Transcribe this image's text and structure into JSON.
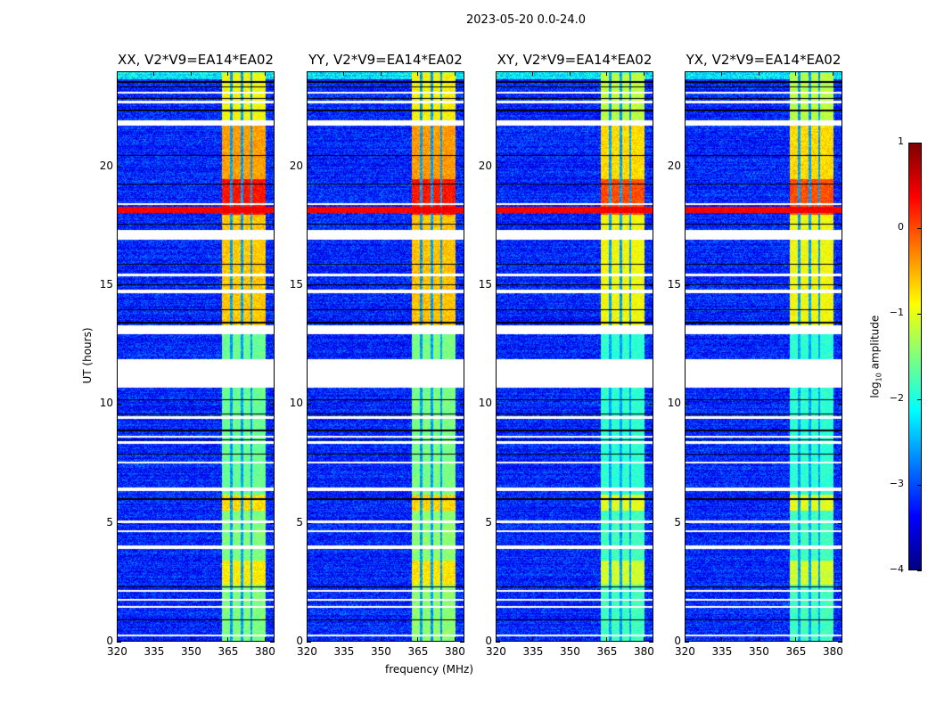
{
  "suptitle": "2023-05-20 0.0-24.0",
  "chart_data": {
    "type": "heatmap",
    "xlabel": "frequency (MHz)",
    "ylabel": "UT (hours)",
    "xlim": [
      320,
      384
    ],
    "ylim": [
      0,
      24
    ],
    "xticks": [
      320,
      335,
      350,
      365,
      380
    ],
    "xtick_labels": [
      "320",
      "335",
      "350",
      "365",
      "380"
    ],
    "yticks": [
      0,
      5,
      10,
      15,
      20
    ],
    "ytick_labels": [
      "0",
      "5",
      "10",
      "15",
      "20"
    ],
    "panels": [
      {
        "title": "XX, V2*V9=EA14*EA02",
        "band_gain": 1.0
      },
      {
        "title": "YY, V2*V9=EA14*EA02",
        "band_gain": 1.1
      },
      {
        "title": "XY, V2*V9=EA14*EA02",
        "band_gain": 0.9
      },
      {
        "title": "YX, V2*V9=EA14*EA02",
        "band_gain": 0.85
      }
    ],
    "colorbar": {
      "label": "log10 amplitude",
      "label_main": "log",
      "label_sub": "10",
      "label_rest": " amplitude",
      "colormap": "jet",
      "range": [
        -4,
        1
      ],
      "ticks": [
        1,
        0,
        -1,
        -2,
        -3,
        -4
      ],
      "tick_labels": [
        "1",
        "0",
        "−1",
        "−2",
        "−3",
        "−4"
      ]
    },
    "structure": {
      "background_log_amp": -3.2,
      "bright_band_mhz": [
        362.5,
        380.5
      ],
      "band_notches_mhz": [
        366.5,
        370.8,
        374.6
      ],
      "band_levels": [
        {
          "from": 0,
          "to": 2.4,
          "level": -1.5
        },
        {
          "from": 2.4,
          "to": 3.4,
          "level": -0.8
        },
        {
          "from": 3.4,
          "to": 5.5,
          "level": -1.5
        },
        {
          "from": 5.5,
          "to": 6.2,
          "level": -0.7
        },
        {
          "from": 6.2,
          "to": 13.3,
          "level": -1.6
        },
        {
          "from": 13.3,
          "to": 18.0,
          "level": -0.6
        },
        {
          "from": 18.0,
          "to": 19.5,
          "level": 0.3
        },
        {
          "from": 19.5,
          "to": 22.0,
          "level": -0.4
        },
        {
          "from": 22.0,
          "to": 24.0,
          "level": -0.9
        }
      ],
      "rfi_line_hours": 18.2,
      "gaps_hours": [
        [
          0.2,
          0.28
        ],
        [
          1.4,
          1.48
        ],
        [
          1.7,
          1.78
        ],
        [
          2.1,
          2.18
        ],
        [
          3.9,
          4.05
        ],
        [
          4.6,
          4.68
        ],
        [
          5.0,
          5.08
        ],
        [
          6.35,
          6.5
        ],
        [
          7.5,
          7.58
        ],
        [
          8.35,
          8.43
        ],
        [
          8.6,
          8.68
        ],
        [
          9.4,
          9.48
        ],
        [
          10.7,
          11.9
        ],
        [
          12.95,
          13.35
        ],
        [
          14.7,
          14.85
        ],
        [
          15.4,
          15.5
        ],
        [
          16.95,
          17.35
        ],
        [
          18.4,
          18.48
        ],
        [
          21.75,
          22.0
        ],
        [
          22.7,
          22.8
        ],
        [
          23.1,
          23.18
        ]
      ],
      "flag_lines_hours": [
        0.9,
        2.3,
        6.0,
        7.9,
        8.5,
        8.9,
        9.6,
        10.2,
        13.45,
        14.0,
        15.05,
        15.9,
        17.6,
        19.3,
        20.5,
        22.4,
        22.9,
        23.4,
        23.6
      ]
    }
  }
}
